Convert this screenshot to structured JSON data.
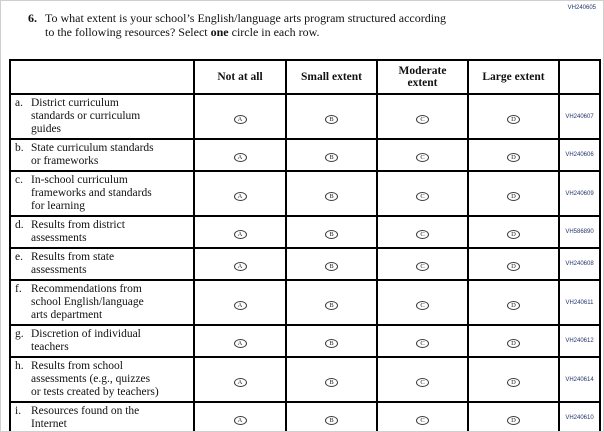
{
  "page_code": "VH240605",
  "question": {
    "number": "6.",
    "line1": "To what extent is your school’s English/language arts program structured according",
    "line2_pre": "to the following resources? Select ",
    "line2_bold": "one",
    "line2_post": " circle in each row."
  },
  "table": {
    "headers": [
      "Not at all",
      "Small extent",
      "Moderate extent",
      "Large extent"
    ],
    "bubble_letters": [
      "A",
      "B",
      "C",
      "D"
    ],
    "rows": [
      {
        "letter": "a.",
        "label_lines": [
          "District curriculum",
          "standards or curriculum",
          "guides"
        ],
        "code": "VH240607"
      },
      {
        "letter": "b.",
        "label_lines": [
          "State curriculum standards",
          "or frameworks"
        ],
        "code": "VH240606"
      },
      {
        "letter": "c.",
        "label_lines": [
          "In-school curriculum",
          "frameworks and standards",
          "for learning"
        ],
        "code": "VH240609"
      },
      {
        "letter": "d.",
        "label_lines": [
          "Results from district",
          "assessments"
        ],
        "code": "VH586890"
      },
      {
        "letter": "e.",
        "label_lines": [
          "Results from state",
          "assessments"
        ],
        "code": "VH240608"
      },
      {
        "letter": "f.",
        "label_lines": [
          "Recommendations from",
          "school English/language",
          "arts department"
        ],
        "code": "VH240611"
      },
      {
        "letter": "g.",
        "label_lines": [
          "Discretion of individual",
          "teachers"
        ],
        "code": "VH240612"
      },
      {
        "letter": "h.",
        "label_lines": [
          "Results from school",
          "assessments (e.g., quizzes",
          "or tests created by teachers)"
        ],
        "code": "VH240614"
      },
      {
        "letter": "i.",
        "label_lines": [
          "Resources found on the",
          "Internet"
        ],
        "code": "VH240610"
      }
    ]
  }
}
